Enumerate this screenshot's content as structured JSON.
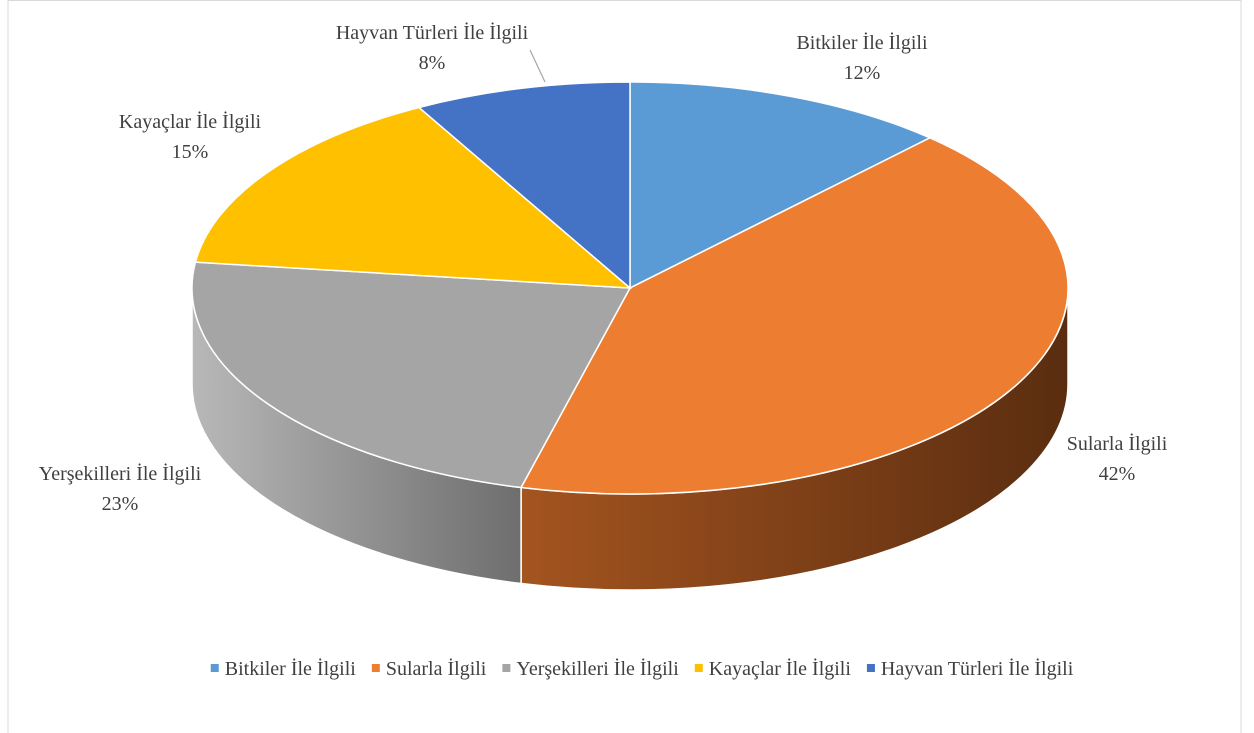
{
  "chart_data": {
    "type": "pie3d",
    "categories": [
      "Bitkiler İle İlgili",
      "Sularla İlgili",
      "Yerşekilleri İle İlgili",
      "Kayaçlar İle İlgili",
      "Hayvan Türleri İle İlgili"
    ],
    "values": [
      12,
      42,
      23,
      15,
      8
    ],
    "value_labels": [
      "12%",
      "42%",
      "23%",
      "15%",
      "8%"
    ],
    "colors": [
      "#5b9bd5",
      "#ed7d31",
      "#a5a5a5",
      "#ffc000",
      "#4472c4"
    ],
    "legend": "bottom"
  }
}
